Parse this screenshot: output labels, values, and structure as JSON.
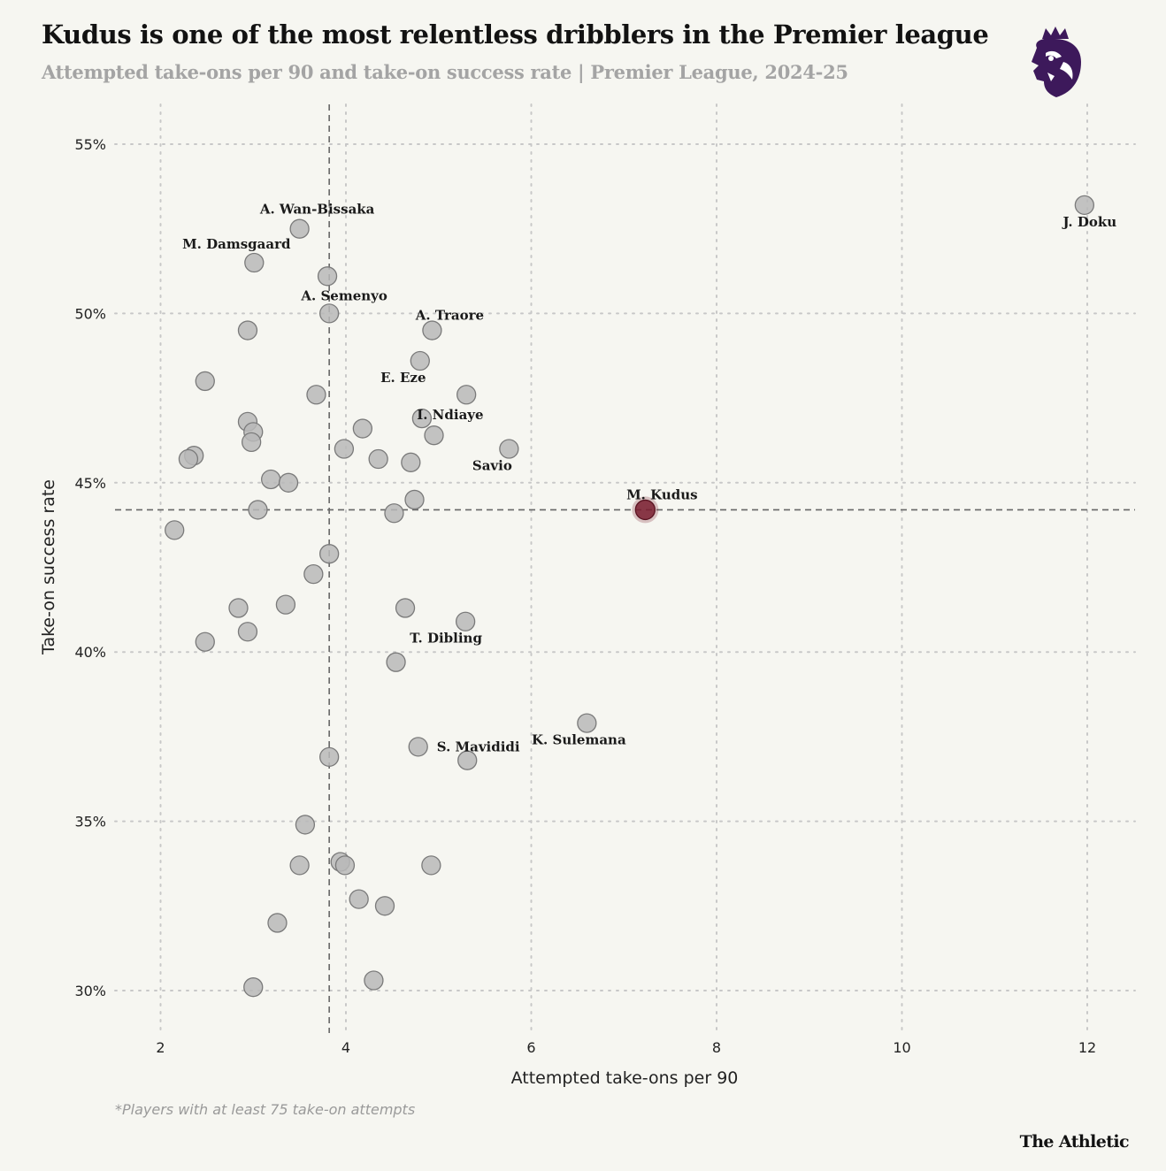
{
  "header": {
    "title": "Kudus is one of the most relentless dribblers in the Premier league",
    "subtitle": "Attempted take-ons per 90 and take-on success rate | Premier League, 2024-25"
  },
  "footer": {
    "footnote": "*Players with at least 75 take-on attempts",
    "brand": "The Athletic"
  },
  "logo": {
    "icon": "premier-league-lion-icon",
    "color": "#3d195b"
  },
  "colors": {
    "dot": "#b8b8b8",
    "dot_stroke": "#7a7a7a",
    "highlight": "#7a1f30",
    "grid": "#c8c8c8",
    "ref_line": "#666666"
  },
  "chart_data": {
    "type": "scatter",
    "title": "Kudus is one of the most relentless dribblers in the Premier league",
    "xlabel": "Attempted take-ons per 90",
    "ylabel": "Take-on success rate",
    "xlim": [
      1.5,
      12.5
    ],
    "ylim": [
      29,
      56.5
    ],
    "xticks": [
      2,
      4,
      6,
      8,
      10,
      12
    ],
    "yticks": [
      30,
      35,
      40,
      45,
      50,
      55
    ],
    "ytick_labels": [
      "30%",
      "35%",
      "40%",
      "45%",
      "50%",
      "55%"
    ],
    "grid": true,
    "reference_lines": {
      "x": 3.82,
      "y": 44.2
    },
    "highlight": "M. Kudus",
    "points": [
      {
        "x": 11.97,
        "y": 53.2,
        "label": "J. Doku"
      },
      {
        "x": 3.5,
        "y": 52.5,
        "label": "A. Wan-Bissaka"
      },
      {
        "x": 3.01,
        "y": 51.5,
        "label": "M. Damsgaard"
      },
      {
        "x": 3.8,
        "y": 51.1,
        "label": ""
      },
      {
        "x": 3.82,
        "y": 50.0,
        "label": "A. Semenyo"
      },
      {
        "x": 2.94,
        "y": 49.5,
        "label": ""
      },
      {
        "x": 4.93,
        "y": 49.5,
        "label": "A. Traore"
      },
      {
        "x": 4.8,
        "y": 48.6,
        "label": "E. Eze"
      },
      {
        "x": 2.48,
        "y": 48.0,
        "label": ""
      },
      {
        "x": 3.68,
        "y": 47.6,
        "label": ""
      },
      {
        "x": 5.3,
        "y": 47.6,
        "label": ""
      },
      {
        "x": 4.82,
        "y": 46.9,
        "label": "I. Ndiaye"
      },
      {
        "x": 2.94,
        "y": 46.8,
        "label": ""
      },
      {
        "x": 4.18,
        "y": 46.6,
        "label": ""
      },
      {
        "x": 3.0,
        "y": 46.5,
        "label": ""
      },
      {
        "x": 4.95,
        "y": 46.4,
        "label": ""
      },
      {
        "x": 2.98,
        "y": 46.2,
        "label": ""
      },
      {
        "x": 3.98,
        "y": 46.0,
        "label": ""
      },
      {
        "x": 5.76,
        "y": 46.0,
        "label": "Savio"
      },
      {
        "x": 2.36,
        "y": 45.8,
        "label": ""
      },
      {
        "x": 2.3,
        "y": 45.7,
        "label": ""
      },
      {
        "x": 4.35,
        "y": 45.7,
        "label": ""
      },
      {
        "x": 4.7,
        "y": 45.6,
        "label": ""
      },
      {
        "x": 3.19,
        "y": 45.1,
        "label": ""
      },
      {
        "x": 3.38,
        "y": 45.0,
        "label": ""
      },
      {
        "x": 4.74,
        "y": 44.5,
        "label": ""
      },
      {
        "x": 3.05,
        "y": 44.2,
        "label": ""
      },
      {
        "x": 4.52,
        "y": 44.1,
        "label": ""
      },
      {
        "x": 7.23,
        "y": 44.2,
        "label": "M. Kudus"
      },
      {
        "x": 2.15,
        "y": 43.6,
        "label": ""
      },
      {
        "x": 3.82,
        "y": 42.9,
        "label": ""
      },
      {
        "x": 3.65,
        "y": 42.3,
        "label": ""
      },
      {
        "x": 3.35,
        "y": 41.4,
        "label": ""
      },
      {
        "x": 2.84,
        "y": 41.3,
        "label": ""
      },
      {
        "x": 4.64,
        "y": 41.3,
        "label": ""
      },
      {
        "x": 5.29,
        "y": 40.9,
        "label": "T. Dibling"
      },
      {
        "x": 2.94,
        "y": 40.6,
        "label": ""
      },
      {
        "x": 2.48,
        "y": 40.3,
        "label": ""
      },
      {
        "x": 4.54,
        "y": 39.7,
        "label": ""
      },
      {
        "x": 6.6,
        "y": 37.9,
        "label": "K. Sulemana"
      },
      {
        "x": 4.78,
        "y": 37.2,
        "label": "S. Mavididi"
      },
      {
        "x": 3.82,
        "y": 36.9,
        "label": ""
      },
      {
        "x": 5.31,
        "y": 36.8,
        "label": ""
      },
      {
        "x": 3.56,
        "y": 34.9,
        "label": ""
      },
      {
        "x": 3.5,
        "y": 33.7,
        "label": ""
      },
      {
        "x": 3.94,
        "y": 33.8,
        "label": ""
      },
      {
        "x": 3.99,
        "y": 33.7,
        "label": ""
      },
      {
        "x": 4.92,
        "y": 33.7,
        "label": ""
      },
      {
        "x": 4.14,
        "y": 32.7,
        "label": ""
      },
      {
        "x": 4.42,
        "y": 32.5,
        "label": ""
      },
      {
        "x": 3.26,
        "y": 32.0,
        "label": ""
      },
      {
        "x": 4.3,
        "y": 30.3,
        "label": ""
      },
      {
        "x": 3.0,
        "y": 30.1,
        "label": ""
      }
    ]
  }
}
